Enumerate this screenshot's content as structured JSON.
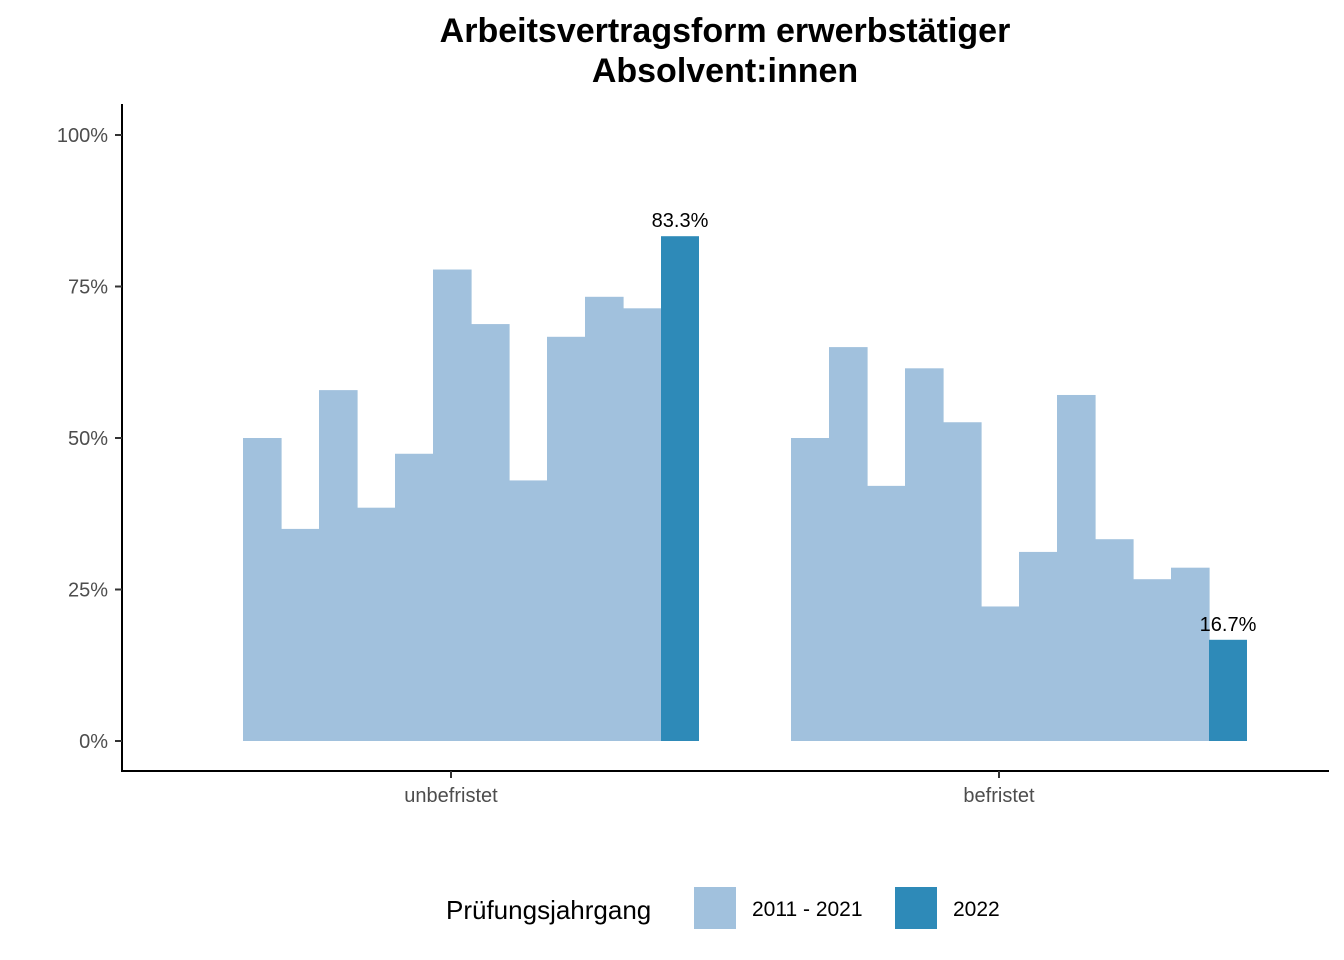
{
  "chart_data": {
    "type": "bar",
    "title_lines": [
      "Arbeitsvertragsform erwerbstätiger",
      "Absolvent:innen"
    ],
    "categories": [
      "unbefristet",
      "befristet"
    ],
    "y_ticks": [
      "0%",
      "25%",
      "50%",
      "75%",
      "100%"
    ],
    "ylim": [
      0,
      100
    ],
    "legend": {
      "title": "Prüfungsjahrgang",
      "position": "bottom",
      "entries": [
        {
          "label": "2011 - 2021",
          "color": "#a1c1dd"
        },
        {
          "label": "2022",
          "color": "#2e8ab8"
        }
      ]
    },
    "groups": [
      {
        "category": "unbefristet",
        "history_values": [
          50.0,
          35.0,
          57.9,
          38.5,
          47.4,
          77.8,
          68.8,
          43.0,
          66.7,
          73.3,
          71.4
        ],
        "current_value": 83.3,
        "current_label": "83.3%"
      },
      {
        "category": "befristet",
        "history_values": [
          50.0,
          65.0,
          42.1,
          61.5,
          52.6,
          22.2,
          31.2,
          57.1,
          33.3,
          26.7,
          28.6
        ],
        "current_value": 16.7,
        "current_label": "16.7%"
      }
    ]
  }
}
